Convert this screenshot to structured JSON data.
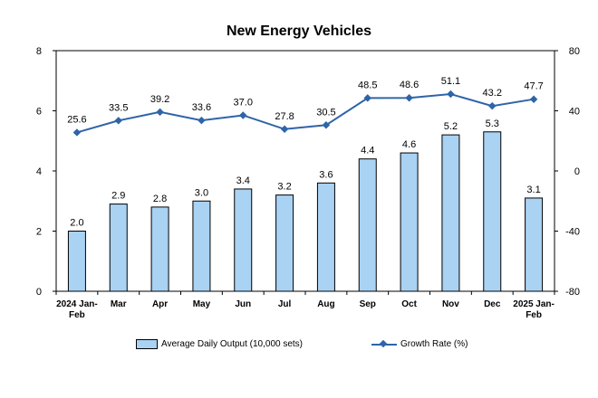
{
  "chart_data": {
    "type": "bar+line",
    "title": "New Energy Vehicles",
    "categories": [
      "2024 Jan-Feb",
      "Mar",
      "Apr",
      "May",
      "Jun",
      "Jul",
      "Aug",
      "Sep",
      "Oct",
      "Nov",
      "Dec",
      "2025 Jan-Feb"
    ],
    "category_lines": [
      [
        "2024 Jan-",
        "Feb"
      ],
      [
        "Mar"
      ],
      [
        "Apr"
      ],
      [
        "May"
      ],
      [
        "Jun"
      ],
      [
        "Jul"
      ],
      [
        "Aug"
      ],
      [
        "Sep"
      ],
      [
        "Oct"
      ],
      [
        "Nov"
      ],
      [
        "Dec"
      ],
      [
        "2025 Jan-",
        "Feb"
      ]
    ],
    "series": [
      {
        "name": "Average Daily Output (10,000 sets)",
        "type": "bar",
        "axis": "left",
        "values": [
          2.0,
          2.9,
          2.8,
          3.0,
          3.4,
          3.2,
          3.6,
          4.4,
          4.6,
          5.2,
          5.3,
          3.1
        ],
        "labels": [
          "2.0",
          "2.9",
          "2.8",
          "3.0",
          "3.4",
          "3.2",
          "3.6",
          "4.4",
          "4.6",
          "5.2",
          "5.3",
          "3.1"
        ],
        "color": "#a9d2f3"
      },
      {
        "name": "Growth Rate (%)",
        "type": "line",
        "axis": "right",
        "values": [
          25.6,
          33.5,
          39.2,
          33.6,
          37.0,
          27.8,
          30.5,
          48.5,
          48.6,
          51.1,
          43.2,
          47.7
        ],
        "labels": [
          "25.6",
          "33.5",
          "39.2",
          "33.6",
          "37.0",
          "27.8",
          "30.5",
          "48.5",
          "48.6",
          "51.1",
          "43.2",
          "47.7"
        ],
        "color": "#2e64a8"
      }
    ],
    "y_left": {
      "range": [
        0,
        8
      ],
      "ticks": [
        "0",
        "2",
        "4",
        "6",
        "8"
      ]
    },
    "y_right": {
      "range": [
        -80,
        80
      ],
      "ticks": [
        "-80",
        "-40",
        "0",
        "40",
        "80"
      ]
    },
    "grid": false,
    "legend_position": "bottom"
  }
}
